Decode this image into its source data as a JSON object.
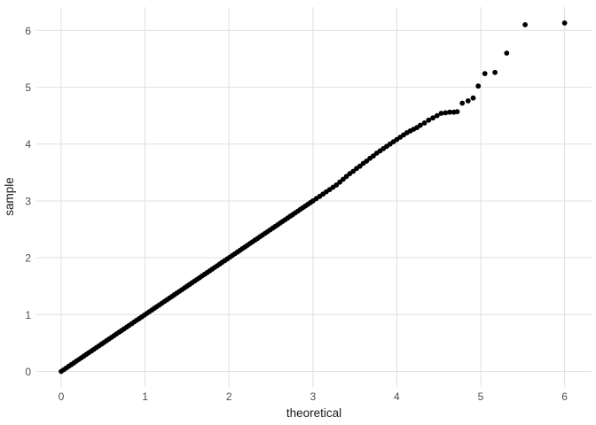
{
  "chart_data": {
    "type": "scatter",
    "title": "",
    "xlabel": "theoretical",
    "ylabel": "sample",
    "x_ticks": [
      0,
      1,
      2,
      3,
      4,
      5,
      6
    ],
    "y_ticks": [
      0,
      1,
      2,
      3,
      4,
      5,
      6
    ],
    "xlim": [
      -0.3,
      6.33
    ],
    "ylim": [
      -0.27,
      6.41
    ],
    "grid": "major gridlines only, light gray on white, no axis lines, no tick marks",
    "legend_position": "none",
    "description": "Q-Q plot of sample quantiles versus theoretical quantiles; points follow the identity line from (0,0) to about (4.7,4.6), then a sparse upper tail rising to (6.0,6.13)",
    "points": [
      [
        0,
        0
      ],
      [
        0.03,
        0.03
      ],
      [
        0.06,
        0.06
      ],
      [
        0.09,
        0.09
      ],
      [
        0.12,
        0.12
      ],
      [
        0.15,
        0.15
      ],
      [
        0.18,
        0.18
      ],
      [
        0.21,
        0.21
      ],
      [
        0.24,
        0.24
      ],
      [
        0.27,
        0.27
      ],
      [
        0.3,
        0.3
      ],
      [
        0.33,
        0.33
      ],
      [
        0.36,
        0.36
      ],
      [
        0.39,
        0.39
      ],
      [
        0.42,
        0.42
      ],
      [
        0.45,
        0.45
      ],
      [
        0.48,
        0.48
      ],
      [
        0.51,
        0.51
      ],
      [
        0.54,
        0.54
      ],
      [
        0.57,
        0.57
      ],
      [
        0.6,
        0.6
      ],
      [
        0.63,
        0.63
      ],
      [
        0.66,
        0.66
      ],
      [
        0.69,
        0.69
      ],
      [
        0.72,
        0.72
      ],
      [
        0.75,
        0.75
      ],
      [
        0.78,
        0.78
      ],
      [
        0.81,
        0.81
      ],
      [
        0.84,
        0.84
      ],
      [
        0.87,
        0.87
      ],
      [
        0.9,
        0.9
      ],
      [
        0.93,
        0.93
      ],
      [
        0.96,
        0.96
      ],
      [
        0.99,
        0.99
      ],
      [
        1.02,
        1.02
      ],
      [
        1.05,
        1.05
      ],
      [
        1.08,
        1.08
      ],
      [
        1.11,
        1.11
      ],
      [
        1.14,
        1.14
      ],
      [
        1.17,
        1.17
      ],
      [
        1.2,
        1.2
      ],
      [
        1.23,
        1.23
      ],
      [
        1.26,
        1.26
      ],
      [
        1.29,
        1.29
      ],
      [
        1.32,
        1.32
      ],
      [
        1.35,
        1.35
      ],
      [
        1.38,
        1.38
      ],
      [
        1.41,
        1.41
      ],
      [
        1.44,
        1.44
      ],
      [
        1.47,
        1.47
      ],
      [
        1.5,
        1.5
      ],
      [
        1.53,
        1.53
      ],
      [
        1.56,
        1.56
      ],
      [
        1.59,
        1.59
      ],
      [
        1.62,
        1.62
      ],
      [
        1.65,
        1.65
      ],
      [
        1.68,
        1.68
      ],
      [
        1.71,
        1.71
      ],
      [
        1.74,
        1.74
      ],
      [
        1.77,
        1.77
      ],
      [
        1.8,
        1.8
      ],
      [
        1.83,
        1.83
      ],
      [
        1.86,
        1.86
      ],
      [
        1.89,
        1.89
      ],
      [
        1.92,
        1.92
      ],
      [
        1.95,
        1.95
      ],
      [
        1.98,
        1.98
      ],
      [
        2.01,
        2.01
      ],
      [
        2.04,
        2.04
      ],
      [
        2.07,
        2.07
      ],
      [
        2.1,
        2.1
      ],
      [
        2.13,
        2.13
      ],
      [
        2.16,
        2.16
      ],
      [
        2.19,
        2.19
      ],
      [
        2.22,
        2.22
      ],
      [
        2.25,
        2.25
      ],
      [
        2.28,
        2.28
      ],
      [
        2.31,
        2.31
      ],
      [
        2.34,
        2.34
      ],
      [
        2.37,
        2.37
      ],
      [
        2.4,
        2.4
      ],
      [
        2.43,
        2.43
      ],
      [
        2.46,
        2.46
      ],
      [
        2.49,
        2.49
      ],
      [
        2.52,
        2.52
      ],
      [
        2.55,
        2.55
      ],
      [
        2.58,
        2.58
      ],
      [
        2.61,
        2.61
      ],
      [
        2.64,
        2.64
      ],
      [
        2.67,
        2.67
      ],
      [
        2.7,
        2.7
      ],
      [
        2.73,
        2.73
      ],
      [
        2.76,
        2.76
      ],
      [
        2.79,
        2.79
      ],
      [
        2.82,
        2.82
      ],
      [
        2.85,
        2.85
      ],
      [
        2.88,
        2.88
      ],
      [
        2.91,
        2.91
      ],
      [
        2.94,
        2.94
      ],
      [
        2.97,
        2.97
      ],
      [
        3,
        3
      ],
      [
        3.04,
        3.04
      ],
      [
        3.08,
        3.08
      ],
      [
        3.12,
        3.12
      ],
      [
        3.16,
        3.16
      ],
      [
        3.2,
        3.2
      ],
      [
        3.24,
        3.24
      ],
      [
        3.28,
        3.28
      ],
      [
        3.32,
        3.33
      ],
      [
        3.36,
        3.38
      ],
      [
        3.4,
        3.43
      ],
      [
        3.44,
        3.48
      ],
      [
        3.48,
        3.52
      ],
      [
        3.52,
        3.57
      ],
      [
        3.56,
        3.61
      ],
      [
        3.6,
        3.66
      ],
      [
        3.64,
        3.7
      ],
      [
        3.68,
        3.75
      ],
      [
        3.72,
        3.79
      ],
      [
        3.76,
        3.84
      ],
      [
        3.8,
        3.88
      ],
      [
        3.84,
        3.92
      ],
      [
        3.88,
        3.96
      ],
      [
        3.92,
        4.0
      ],
      [
        3.96,
        4.04
      ],
      [
        4.0,
        4.08
      ],
      [
        4.04,
        4.12
      ],
      [
        4.08,
        4.16
      ],
      [
        4.12,
        4.2
      ],
      [
        4.16,
        4.23
      ],
      [
        4.2,
        4.26
      ],
      [
        4.24,
        4.29
      ],
      [
        4.28,
        4.33
      ],
      [
        4.33,
        4.37
      ],
      [
        4.38,
        4.42
      ],
      [
        4.43,
        4.46
      ],
      [
        4.48,
        4.5
      ],
      [
        4.53,
        4.54
      ],
      [
        4.58,
        4.55
      ],
      [
        4.63,
        4.56
      ],
      [
        4.68,
        4.56
      ],
      [
        4.72,
        4.57
      ],
      [
        4.78,
        4.72
      ],
      [
        4.85,
        4.76
      ],
      [
        4.91,
        4.81
      ],
      [
        4.97,
        5.02
      ],
      [
        5.05,
        5.24
      ],
      [
        5.17,
        5.26
      ],
      [
        5.31,
        5.6
      ],
      [
        5.53,
        6.1
      ],
      [
        6.0,
        6.13
      ]
    ]
  },
  "colors": {
    "background": "#ffffff",
    "gridline": "#e3e3e3",
    "tick_label": "#4d4d4d",
    "axis_title": "#1a1a1a",
    "point": "#000000"
  }
}
